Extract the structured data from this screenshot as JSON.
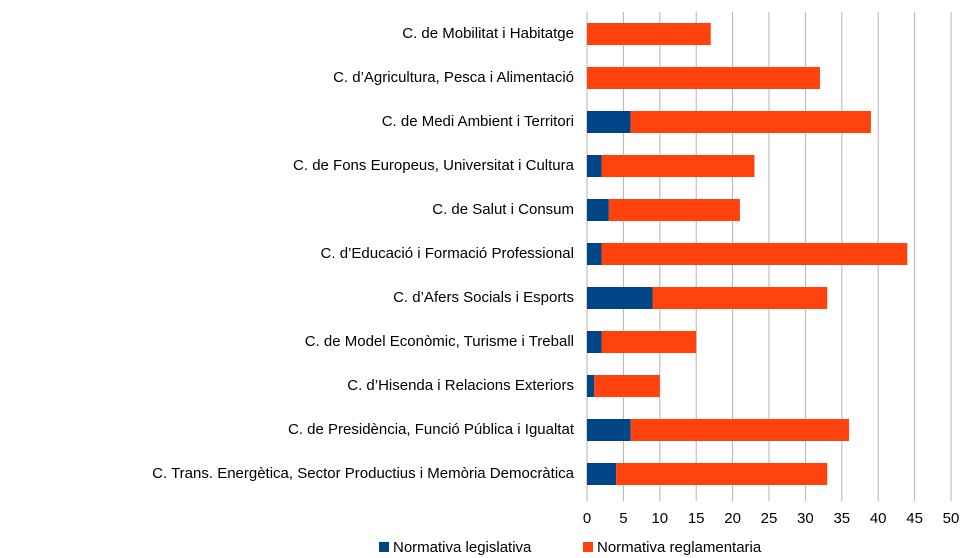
{
  "chart_data": {
    "type": "stacked-barh",
    "categories": [
      "C. de Mobilitat i Habitatge",
      "C. d’Agricultura, Pesca i Alimentació",
      "C. de Medi Ambient i Territori",
      "C. de Fons Europeus, Universitat i Cultura",
      "C. de Salut i Consum",
      "C. d’Educació i Formació Professional",
      "C. d’Afers Socials i Esports",
      "C. de Model Econòmic, Turisme i Treball",
      "C. d’Hisenda i Relacions Exteriors",
      "C. de Presidència, Funció Pública i Igualtat",
      "C. Trans. Energètica, Sector Productius i Memòria Democràtica"
    ],
    "series": [
      {
        "name": "Normativa legislativa",
        "color": "#004586",
        "values": [
          0,
          0,
          6,
          2,
          3,
          2,
          9,
          2,
          1,
          6,
          4
        ]
      },
      {
        "name": "Normativa reglamentaria",
        "color": "#ff420e",
        "values": [
          17,
          32,
          33,
          21,
          18,
          42,
          24,
          13,
          9,
          30,
          29
        ]
      }
    ],
    "xlim": [
      0,
      50
    ],
    "xticks": [
      0,
      5,
      10,
      15,
      20,
      25,
      30,
      35,
      40,
      45,
      50
    ],
    "grid": true
  }
}
